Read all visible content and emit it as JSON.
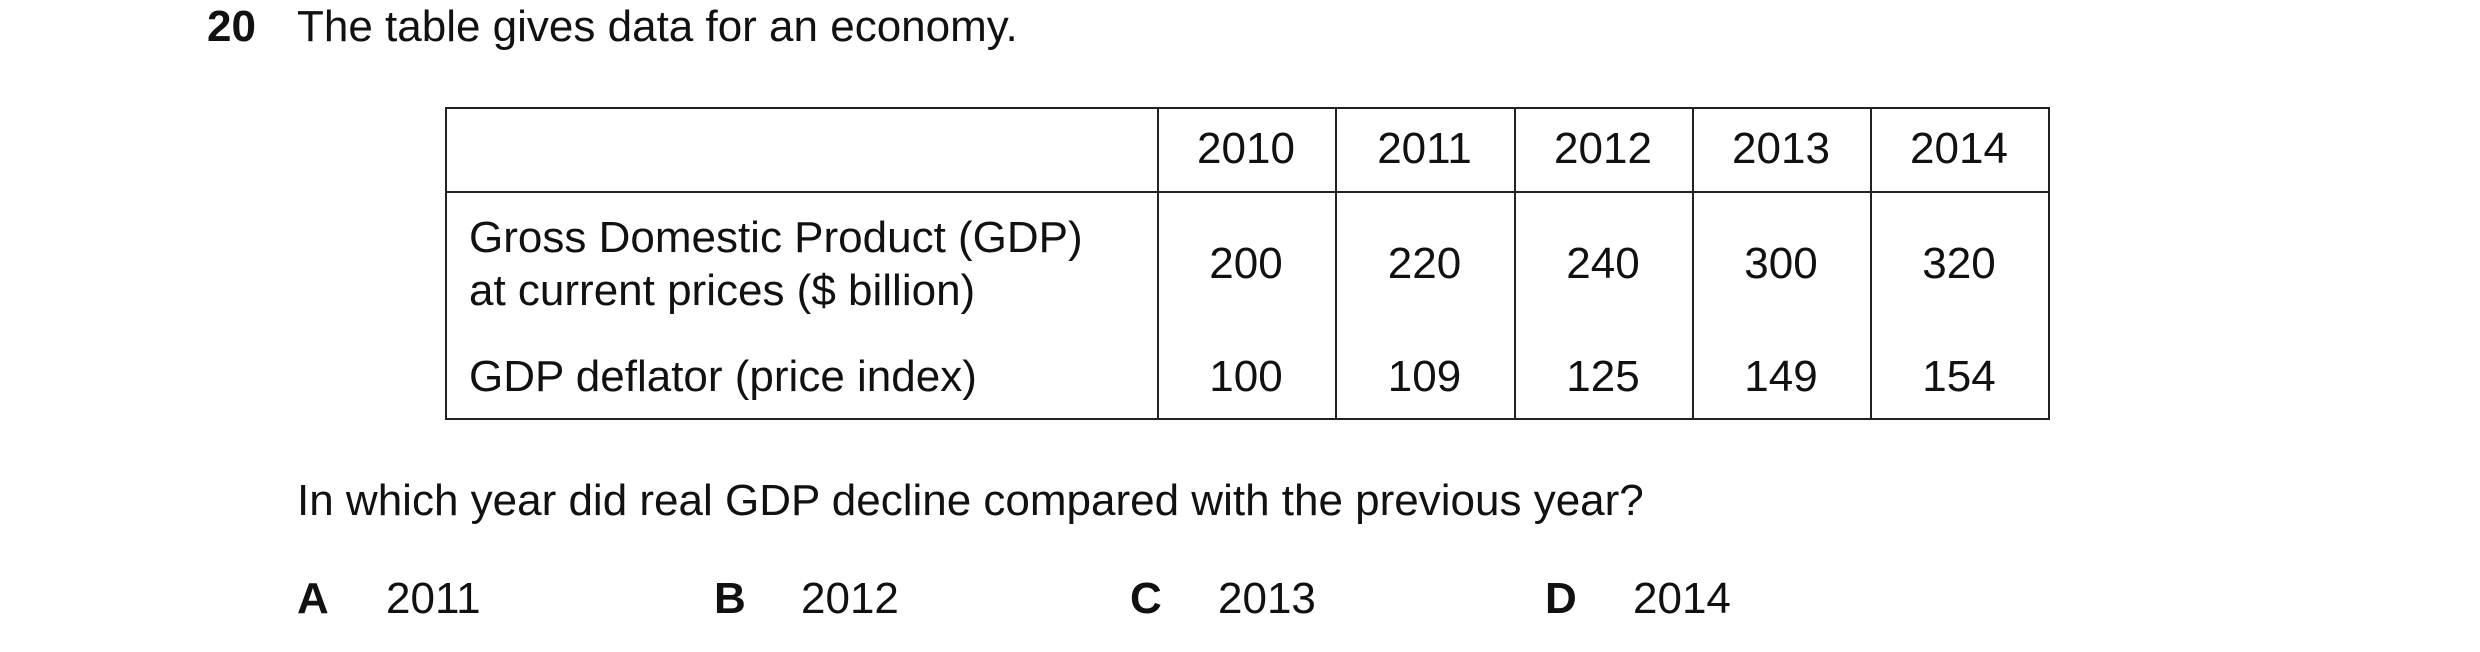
{
  "question": {
    "number": "20",
    "text": "The table gives data for an economy.",
    "table": {
      "columns": [
        "2010",
        "2011",
        "2012",
        "2013",
        "2014"
      ],
      "rows": [
        {
          "label": [
            "Gross Domestic Product (GDP)",
            "at current prices ($ billion)"
          ],
          "values": [
            200,
            220,
            240,
            300,
            320
          ]
        },
        {
          "label": [
            "GDP deflator (price index)"
          ],
          "values": [
            100,
            109,
            125,
            149,
            154
          ]
        }
      ]
    },
    "prompt": "In which year did real GDP decline compared with the previous year?",
    "options": [
      {
        "letter": "A",
        "text": "2011"
      },
      {
        "letter": "B",
        "text": "2012"
      },
      {
        "letter": "C",
        "text": "2013"
      },
      {
        "letter": "D",
        "text": "2014"
      }
    ]
  }
}
